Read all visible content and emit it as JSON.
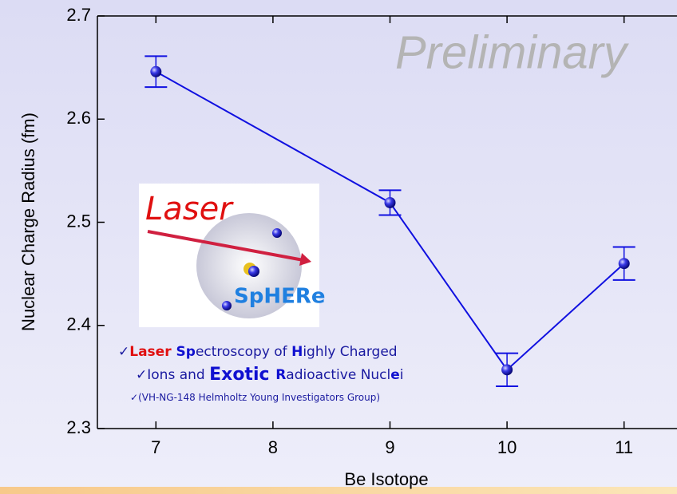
{
  "chart_data": {
    "type": "line",
    "x_label": "Be Isotope",
    "y_label": "Nuclear Charge Radius (fm)",
    "annotation": "Preliminary",
    "logo": {
      "top": "Laser",
      "bottom": "SpHERe"
    },
    "notes": [
      [
        "✓",
        "Laser ",
        "Sp",
        "ectroscopy of ",
        "H",
        "ighly Charged"
      ],
      [
        "✓",
        "Ions and ",
        "Exotic ",
        "R",
        "adioactive Nucl",
        "e",
        "i"
      ],
      [
        "✓",
        "(VH-NG-148 Helmholtz Young Investigators Group)"
      ]
    ],
    "x": [
      7,
      9,
      10,
      11
    ],
    "series": [
      {
        "color": "#1010e0",
        "values": [
          2.646,
          2.519,
          2.357,
          2.46
        ],
        "errors": [
          0.015,
          0.012,
          0.016,
          0.016
        ]
      }
    ],
    "xlim": [
      6.5,
      11.5
    ],
    "xticks": [
      7,
      8,
      9,
      10,
      11
    ],
    "ylim": [
      2.3,
      2.7
    ],
    "yticks": [
      2.3,
      2.4,
      2.5,
      2.6,
      2.7
    ]
  }
}
